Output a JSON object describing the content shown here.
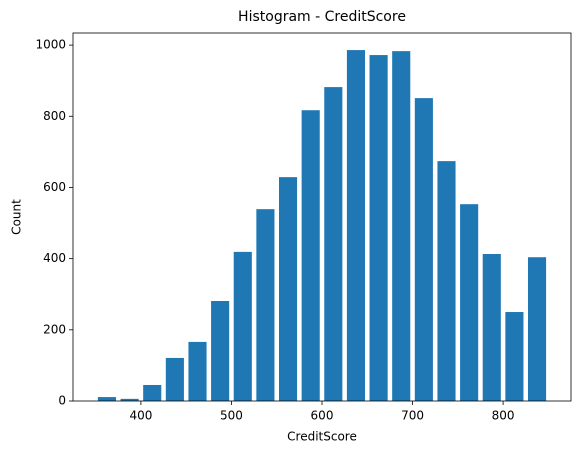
{
  "chart_data": {
    "type": "histogram",
    "title": "Histogram - CreditScore",
    "x_label": "CreditScore",
    "y_label": "Count",
    "bins": [
      350,
      375,
      400,
      425,
      450,
      475,
      500,
      525,
      550,
      575,
      600,
      625,
      650,
      675,
      700,
      725,
      750,
      775,
      800,
      825,
      850
    ],
    "values": [
      11,
      6,
      45,
      121,
      166,
      281,
      419,
      539,
      629,
      817,
      882,
      986,
      972,
      983,
      851,
      674,
      553,
      413,
      250,
      404
    ],
    "color": "#1f77b4",
    "xlim": [
      325,
      875
    ],
    "xticks": [
      400,
      500,
      600,
      700,
      800
    ],
    "ylim": [
      0,
      1034
    ],
    "yticks": [
      0,
      200,
      400,
      600,
      800,
      1000
    ],
    "grid": false
  }
}
